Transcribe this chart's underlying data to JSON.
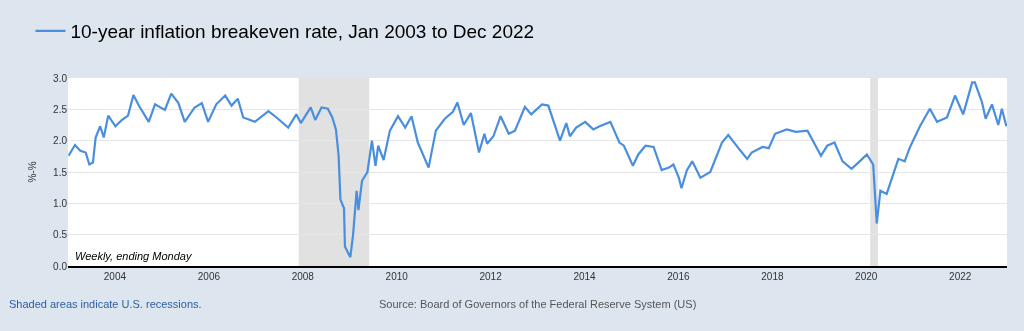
{
  "chart_data": {
    "type": "line",
    "ylabel": "%-%",
    "x": [
      "2003-01-06",
      "2003-02-24",
      "2003-04-07",
      "2003-05-19",
      "2003-06-16",
      "2003-07-14",
      "2003-08-04",
      "2003-09-08",
      "2003-10-06",
      "2003-11-10",
      "2004-01-05",
      "2004-02-23",
      "2004-04-12",
      "2004-05-24",
      "2004-07-05",
      "2004-09-20",
      "2004-11-08",
      "2005-01-24",
      "2005-03-14",
      "2005-05-09",
      "2005-06-27",
      "2005-09-12",
      "2005-11-07",
      "2005-12-26",
      "2006-02-27",
      "2006-05-08",
      "2006-06-26",
      "2006-08-14",
      "2006-09-25",
      "2006-12-25",
      "2007-04-09",
      "2007-06-11",
      "2007-09-10",
      "2007-11-12",
      "2007-12-17",
      "2008-03-03",
      "2008-04-07",
      "2008-05-26",
      "2008-07-14",
      "2008-08-18",
      "2008-09-15",
      "2008-10-06",
      "2008-10-20",
      "2008-11-17",
      "2008-11-24",
      "2009-01-05",
      "2009-01-26",
      "2009-02-23",
      "2009-03-09",
      "2009-04-06",
      "2009-05-18",
      "2009-06-22",
      "2009-07-20",
      "2009-08-10",
      "2009-09-21",
      "2009-11-09",
      "2010-01-11",
      "2010-03-08",
      "2010-04-26",
      "2010-06-14",
      "2010-09-06",
      "2010-11-01",
      "2011-01-10",
      "2011-03-14",
      "2011-04-18",
      "2011-06-06",
      "2011-08-01",
      "2011-10-03",
      "2011-11-14",
      "2011-12-05",
      "2012-01-23",
      "2012-03-19",
      "2012-05-21",
      "2012-07-09",
      "2012-09-24",
      "2012-11-12",
      "2013-02-04",
      "2013-03-25",
      "2013-06-24",
      "2013-08-12",
      "2013-09-09",
      "2013-10-28",
      "2014-01-06",
      "2014-03-10",
      "2014-04-28",
      "2014-07-21",
      "2014-09-29",
      "2014-11-03",
      "2015-01-12",
      "2015-02-23",
      "2015-04-20",
      "2015-06-22",
      "2015-08-24",
      "2015-10-19",
      "2015-11-23",
      "2016-01-04",
      "2016-01-25",
      "2016-03-07",
      "2016-04-18",
      "2016-06-20",
      "2016-09-05",
      "2016-12-05",
      "2017-01-23",
      "2017-04-24",
      "2017-06-19",
      "2017-07-24",
      "2017-10-16",
      "2017-12-04",
      "2018-01-22",
      "2018-04-23",
      "2018-07-02",
      "2018-10-01",
      "2018-12-03",
      "2019-01-14",
      "2019-03-04",
      "2019-04-29",
      "2019-07-01",
      "2019-09-09",
      "2019-11-11",
      "2020-01-06",
      "2020-02-24",
      "2020-03-23",
      "2020-04-20",
      "2020-06-08",
      "2020-09-07",
      "2020-10-26",
      "2020-12-07",
      "2021-02-22",
      "2021-05-10",
      "2021-07-05",
      "2021-09-20",
      "2021-11-22",
      "2022-01-24",
      "2022-04-04",
      "2022-04-25",
      "2022-06-20",
      "2022-07-18",
      "2022-09-05",
      "2022-10-24",
      "2022-11-21",
      "2022-12-26"
    ],
    "series": [
      {
        "name": "10-year inflation breakeven rate, Jan 2003 to Dec 2022",
        "color": "#4a8fde",
        "values": [
          1.76,
          1.93,
          1.84,
          1.81,
          1.62,
          1.65,
          2.05,
          2.23,
          2.05,
          2.4,
          2.23,
          2.33,
          2.4,
          2.73,
          2.56,
          2.3,
          2.58,
          2.49,
          2.75,
          2.6,
          2.3,
          2.53,
          2.6,
          2.3,
          2.58,
          2.72,
          2.56,
          2.67,
          2.37,
          2.3,
          2.47,
          2.37,
          2.21,
          2.42,
          2.28,
          2.53,
          2.33,
          2.53,
          2.51,
          2.37,
          2.18,
          1.76,
          1.06,
          0.92,
          0.31,
          0.14,
          0.49,
          1.2,
          0.89,
          1.36,
          1.5,
          2.0,
          1.6,
          1.92,
          1.69,
          2.16,
          2.39,
          2.21,
          2.39,
          1.97,
          1.57,
          2.16,
          2.35,
          2.46,
          2.61,
          2.25,
          2.44,
          1.81,
          2.11,
          1.95,
          2.07,
          2.39,
          2.11,
          2.16,
          2.54,
          2.42,
          2.58,
          2.56,
          2.0,
          2.28,
          2.07,
          2.21,
          2.3,
          2.18,
          2.23,
          2.3,
          1.97,
          1.92,
          1.6,
          1.78,
          1.92,
          1.9,
          1.53,
          1.57,
          1.62,
          1.41,
          1.24,
          1.53,
          1.67,
          1.41,
          1.5,
          1.97,
          2.09,
          1.85,
          1.71,
          1.81,
          1.9,
          1.88,
          2.11,
          2.18,
          2.14,
          2.16,
          1.92,
          1.76,
          1.92,
          1.97,
          1.67,
          1.55,
          1.67,
          1.78,
          1.62,
          0.68,
          1.2,
          1.15,
          1.71,
          1.67,
          1.9,
          2.23,
          2.51,
          2.3,
          2.37,
          2.72,
          2.42,
          2.93,
          2.93,
          2.61,
          2.35,
          2.58,
          2.25,
          2.51,
          2.23
        ]
      }
    ],
    "xlim": [
      "2003-01-01",
      "2022-12-31"
    ],
    "xticks": [
      "2004",
      "2006",
      "2008",
      "2010",
      "2012",
      "2014",
      "2016",
      "2018",
      "2020",
      "2022"
    ],
    "ylim": [
      0,
      3
    ],
    "yticks": [
      {
        "value": 0,
        "label": "0.0"
      },
      {
        "value": 0.5,
        "label": "0.5"
      },
      {
        "value": 1,
        "label": "1.0"
      },
      {
        "value": 1.5,
        "label": "1.5"
      },
      {
        "value": 2,
        "label": "2.0"
      },
      {
        "value": 2.5,
        "label": "2.5"
      },
      {
        "value": 3,
        "label": "3.0"
      }
    ],
    "bands": [
      {
        "axis": "x",
        "from": "2007-12-01",
        "to": "2009-06-01",
        "color": "#e1e1e1"
      },
      {
        "axis": "x",
        "from": "2020-02-01",
        "to": "2020-04-01",
        "color": "#e1e1e1"
      }
    ],
    "annotations": [
      "Weekly, ending Monday",
      "Shaded areas indicate U.S. recessions.",
      "Source: Board of Governors of the Federal Reserve System (US)"
    ],
    "grid": "y",
    "legend": "top left",
    "marker": "none",
    "line_style": "solid"
  }
}
